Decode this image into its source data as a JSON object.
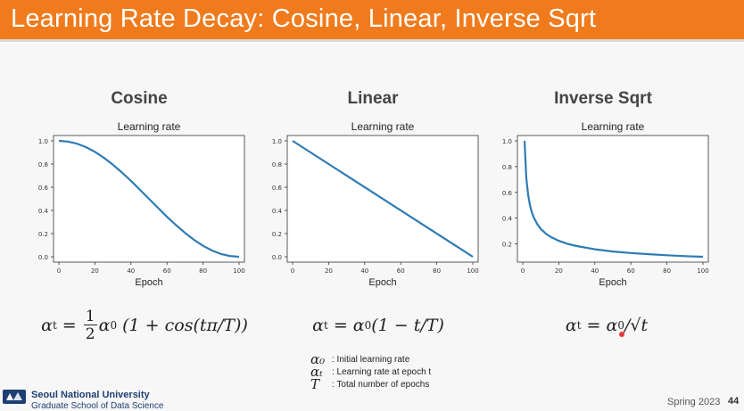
{
  "slide": {
    "title": "Learning Rate Decay: Cosine, Linear, Inverse Sqrt",
    "footer": {
      "university": "Seoul National University",
      "school": "Graduate School of Data Science",
      "term": "Spring 2023",
      "page": "44"
    },
    "legend": [
      {
        "symbol": "α₀",
        "desc": ": Initial learning rate"
      },
      {
        "symbol": "αₜ",
        "desc": ": Learning rate at epoch t"
      },
      {
        "symbol": "T",
        "desc": ": Total number of epochs"
      }
    ],
    "formulas": {
      "cosine": {
        "lhs": "α",
        "lhs_sub": "t",
        "eq": " = ",
        "num": "1",
        "den": "2",
        "rhs": "α",
        "rhs_sub": "0",
        "tail": " (1 + cos(tπ/T))"
      },
      "linear": {
        "text": "α",
        "sub": "t",
        "eq": " = ",
        "rhs": "α",
        "rhs_sub": "0",
        "tail": "(1 − t/T)"
      },
      "invsqrt": {
        "text": "α",
        "sub": "t",
        "eq": " = ",
        "rhs": "α",
        "rhs_sub": "0",
        "tail": "/√t"
      }
    },
    "colors": {
      "accent": "#f07b1c",
      "line": "#2e7bb4"
    }
  },
  "chart_data": [
    {
      "type": "line",
      "heading": "Cosine",
      "title": "Learning rate",
      "xlabel": "Epoch",
      "ylabel": "",
      "xlim": [
        0,
        100
      ],
      "ylim": [
        0,
        1.0
      ],
      "xticks": [
        0,
        20,
        40,
        60,
        80,
        100
      ],
      "yticks": [
        0.0,
        0.2,
        0.4,
        0.6,
        0.8,
        1.0
      ],
      "ytick_labels": [
        "0.0",
        "0.2",
        "0.4",
        "0.6",
        "0.8",
        "1.0"
      ],
      "series": [
        {
          "x": [
            0,
            5,
            10,
            15,
            20,
            25,
            30,
            35,
            40,
            45,
            50,
            55,
            60,
            65,
            70,
            75,
            80,
            85,
            90,
            95,
            100
          ],
          "y": [
            1.0,
            0.994,
            0.976,
            0.946,
            0.905,
            0.854,
            0.794,
            0.727,
            0.655,
            0.578,
            0.5,
            0.422,
            0.345,
            0.273,
            0.206,
            0.146,
            0.095,
            0.054,
            0.024,
            0.006,
            0.0
          ]
        }
      ]
    },
    {
      "type": "line",
      "heading": "Linear",
      "title": "Learning rate",
      "xlabel": "Epoch",
      "ylabel": "",
      "xlim": [
        0,
        100
      ],
      "ylim": [
        0,
        1.0
      ],
      "xticks": [
        0,
        20,
        40,
        60,
        80,
        100
      ],
      "yticks": [
        0.0,
        0.2,
        0.4,
        0.6,
        0.8,
        1.0
      ],
      "ytick_labels": [
        "0.0",
        "0.2",
        "0.4",
        "0.6",
        "0.8",
        "1.0"
      ],
      "series": [
        {
          "x": [
            0,
            100
          ],
          "y": [
            1.0,
            0.0
          ]
        }
      ]
    },
    {
      "type": "line",
      "heading": "Inverse Sqrt",
      "title": "Learning rate",
      "xlabel": "Epoch",
      "ylabel": "",
      "xlim": [
        0,
        100
      ],
      "ylim": [
        0.1,
        1.0
      ],
      "xticks": [
        0,
        20,
        40,
        60,
        80,
        100
      ],
      "yticks": [
        0.2,
        0.4,
        0.6,
        0.8,
        1.0
      ],
      "ytick_labels": [
        "0.2",
        "0.4",
        "0.6",
        "0.8",
        "1.0"
      ],
      "series": [
        {
          "x": [
            1,
            2,
            3,
            4,
            5,
            6,
            8,
            10,
            13,
            16,
            20,
            25,
            30,
            40,
            50,
            60,
            70,
            80,
            90,
            100
          ],
          "y": [
            1.0,
            0.707,
            0.577,
            0.5,
            0.447,
            0.408,
            0.354,
            0.316,
            0.277,
            0.25,
            0.224,
            0.2,
            0.183,
            0.158,
            0.141,
            0.129,
            0.12,
            0.112,
            0.105,
            0.1
          ]
        }
      ]
    }
  ]
}
